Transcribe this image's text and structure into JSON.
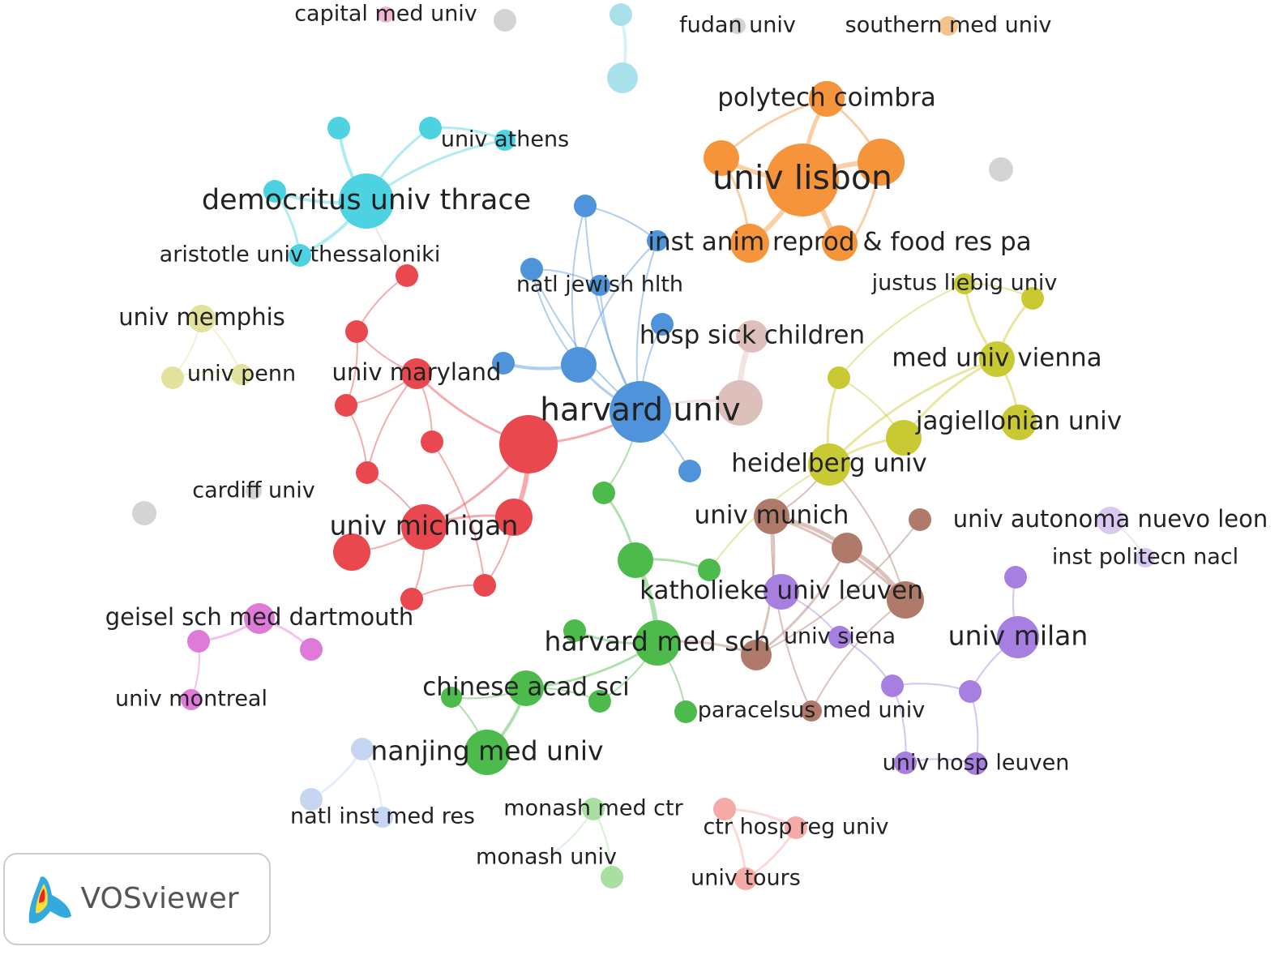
{
  "nodes": [
    {
      "label": "capital med univ"
    },
    {
      "label": "fudan univ"
    },
    {
      "label": "southern med univ"
    },
    {
      "label": "polytech coimbra"
    },
    {
      "label": "univ athens"
    },
    {
      "label": "democritus univ thrace"
    },
    {
      "label": "univ lisbon"
    },
    {
      "label": "aristotle univ thessaloniki"
    },
    {
      "label": "inst anim reprod & food res pa"
    },
    {
      "label": "natl jewish hlth"
    },
    {
      "label": "justus liebig univ"
    },
    {
      "label": "univ memphis"
    },
    {
      "label": "hosp sick children"
    },
    {
      "label": "med univ vienna"
    },
    {
      "label": "univ penn"
    },
    {
      "label": "univ maryland"
    },
    {
      "label": "harvard univ"
    },
    {
      "label": "jagiellonian univ"
    },
    {
      "label": "heidelberg univ"
    },
    {
      "label": "cardiff univ"
    },
    {
      "label": "univ munich"
    },
    {
      "label": "univ autonoma nuevo leon"
    },
    {
      "label": "univ michigan"
    },
    {
      "label": "inst politecn nacl"
    },
    {
      "label": "katholieke univ leuven"
    },
    {
      "label": "geisel sch med dartmouth"
    },
    {
      "label": "univ milan"
    },
    {
      "label": "harvard med sch"
    },
    {
      "label": "univ siena"
    },
    {
      "label": "chinese acad sci"
    },
    {
      "label": "univ montreal"
    },
    {
      "label": "paracelsus med univ"
    },
    {
      "label": "nanjing med univ"
    },
    {
      "label": "univ hosp leuven"
    },
    {
      "label": "natl inst med res"
    },
    {
      "label": "monash med ctr"
    },
    {
      "label": "ctr hosp reg univ"
    },
    {
      "label": "monash univ"
    },
    {
      "label": "univ tours"
    }
  ],
  "logo": {
    "text": "VOSviewer"
  }
}
